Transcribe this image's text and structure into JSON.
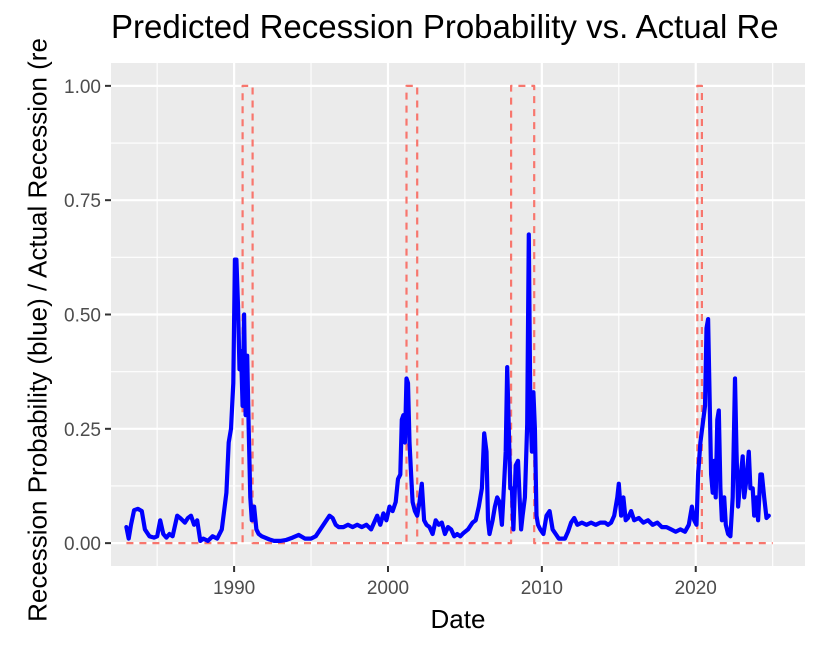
{
  "chart_data": {
    "type": "line",
    "title": "Predicted Recession Probability vs. Actual Re",
    "xlabel": "Date",
    "ylabel": "Recession Probability (blue) / Actual Recession (re",
    "xlim": [
      1982.0,
      2027.1
    ],
    "ylim": [
      -0.05,
      1.05
    ],
    "x_ticks": [
      1990,
      2000,
      2010,
      2020
    ],
    "x_tick_labels": [
      "1990",
      "2000",
      "2010",
      "2020"
    ],
    "y_ticks": [
      0,
      0.25,
      0.5,
      0.75,
      1.0
    ],
    "y_tick_labels": [
      "0.00",
      "0.25",
      "0.50",
      "0.75",
      "1.00"
    ],
    "grid": true,
    "background": "#ebebeb",
    "series": [
      {
        "color": "#0000ff",
        "style": "solid",
        "points": [
          [
            1983.0,
            0.035
          ],
          [
            1983.15,
            0.01
          ],
          [
            1983.3,
            0.04
          ],
          [
            1983.5,
            0.072
          ],
          [
            1983.75,
            0.075
          ],
          [
            1984.0,
            0.07
          ],
          [
            1984.2,
            0.03
          ],
          [
            1984.5,
            0.015
          ],
          [
            1984.8,
            0.012
          ],
          [
            1985.0,
            0.015
          ],
          [
            1985.2,
            0.05
          ],
          [
            1985.4,
            0.02
          ],
          [
            1985.6,
            0.012
          ],
          [
            1985.8,
            0.02
          ],
          [
            1986.0,
            0.015
          ],
          [
            1986.3,
            0.06
          ],
          [
            1986.5,
            0.055
          ],
          [
            1986.8,
            0.045
          ],
          [
            1987.0,
            0.055
          ],
          [
            1987.2,
            0.06
          ],
          [
            1987.4,
            0.04
          ],
          [
            1987.6,
            0.05
          ],
          [
            1987.8,
            0.005
          ],
          [
            1988.0,
            0.01
          ],
          [
            1988.3,
            0.005
          ],
          [
            1988.6,
            0.015
          ],
          [
            1988.9,
            0.01
          ],
          [
            1989.2,
            0.03
          ],
          [
            1989.5,
            0.11
          ],
          [
            1989.65,
            0.22
          ],
          [
            1989.8,
            0.25
          ],
          [
            1989.95,
            0.35
          ],
          [
            1990.05,
            0.62
          ],
          [
            1990.15,
            0.62
          ],
          [
            1990.25,
            0.52
          ],
          [
            1990.35,
            0.38
          ],
          [
            1990.45,
            0.42
          ],
          [
            1990.55,
            0.3
          ],
          [
            1990.65,
            0.5
          ],
          [
            1990.75,
            0.28
          ],
          [
            1990.85,
            0.41
          ],
          [
            1990.95,
            0.25
          ],
          [
            1991.05,
            0.1
          ],
          [
            1991.15,
            0.05
          ],
          [
            1991.3,
            0.08
          ],
          [
            1991.45,
            0.03
          ],
          [
            1991.6,
            0.02
          ],
          [
            1991.8,
            0.015
          ],
          [
            1992.0,
            0.012
          ],
          [
            1992.3,
            0.008
          ],
          [
            1992.6,
            0.005
          ],
          [
            1993.0,
            0.005
          ],
          [
            1993.4,
            0.007
          ],
          [
            1993.8,
            0.012
          ],
          [
            1994.2,
            0.018
          ],
          [
            1994.6,
            0.01
          ],
          [
            1995.0,
            0.01
          ],
          [
            1995.3,
            0.015
          ],
          [
            1995.6,
            0.03
          ],
          [
            1995.9,
            0.045
          ],
          [
            1996.2,
            0.06
          ],
          [
            1996.4,
            0.055
          ],
          [
            1996.6,
            0.04
          ],
          [
            1996.8,
            0.035
          ],
          [
            1997.1,
            0.035
          ],
          [
            1997.4,
            0.04
          ],
          [
            1997.7,
            0.035
          ],
          [
            1998.0,
            0.04
          ],
          [
            1998.3,
            0.035
          ],
          [
            1998.6,
            0.04
          ],
          [
            1998.9,
            0.03
          ],
          [
            1999.1,
            0.045
          ],
          [
            1999.3,
            0.06
          ],
          [
            1999.5,
            0.04
          ],
          [
            1999.7,
            0.065
          ],
          [
            1999.9,
            0.05
          ],
          [
            2000.1,
            0.08
          ],
          [
            2000.3,
            0.07
          ],
          [
            2000.5,
            0.09
          ],
          [
            2000.65,
            0.14
          ],
          [
            2000.8,
            0.15
          ],
          [
            2000.9,
            0.27
          ],
          [
            2001.0,
            0.28
          ],
          [
            2001.1,
            0.22
          ],
          [
            2001.2,
            0.36
          ],
          [
            2001.3,
            0.35
          ],
          [
            2001.4,
            0.22
          ],
          [
            2001.5,
            0.15
          ],
          [
            2001.6,
            0.09
          ],
          [
            2001.75,
            0.07
          ],
          [
            2001.9,
            0.06
          ],
          [
            2002.05,
            0.09
          ],
          [
            2002.2,
            0.13
          ],
          [
            2002.35,
            0.05
          ],
          [
            2002.5,
            0.04
          ],
          [
            2002.7,
            0.035
          ],
          [
            2002.9,
            0.02
          ],
          [
            2003.1,
            0.05
          ],
          [
            2003.3,
            0.04
          ],
          [
            2003.5,
            0.045
          ],
          [
            2003.7,
            0.02
          ],
          [
            2003.9,
            0.035
          ],
          [
            2004.1,
            0.03
          ],
          [
            2004.3,
            0.015
          ],
          [
            2004.5,
            0.02
          ],
          [
            2004.7,
            0.015
          ],
          [
            2004.9,
            0.022
          ],
          [
            2005.2,
            0.03
          ],
          [
            2005.5,
            0.045
          ],
          [
            2005.7,
            0.05
          ],
          [
            2005.9,
            0.08
          ],
          [
            2006.1,
            0.12
          ],
          [
            2006.25,
            0.24
          ],
          [
            2006.4,
            0.2
          ],
          [
            2006.5,
            0.05
          ],
          [
            2006.6,
            0.02
          ],
          [
            2006.8,
            0.05
          ],
          [
            2006.95,
            0.08
          ],
          [
            2007.1,
            0.1
          ],
          [
            2007.25,
            0.09
          ],
          [
            2007.4,
            0.04
          ],
          [
            2007.5,
            0.1
          ],
          [
            2007.65,
            0.2
          ],
          [
            2007.75,
            0.385
          ],
          [
            2007.85,
            0.25
          ],
          [
            2007.95,
            0.12
          ],
          [
            2008.05,
            0.12
          ],
          [
            2008.15,
            0.03
          ],
          [
            2008.3,
            0.17
          ],
          [
            2008.45,
            0.18
          ],
          [
            2008.55,
            0.1
          ],
          [
            2008.65,
            0.03
          ],
          [
            2008.75,
            0.06
          ],
          [
            2008.9,
            0.1
          ],
          [
            2009.05,
            0.26
          ],
          [
            2009.15,
            0.675
          ],
          [
            2009.25,
            0.3
          ],
          [
            2009.35,
            0.2
          ],
          [
            2009.45,
            0.33
          ],
          [
            2009.55,
            0.25
          ],
          [
            2009.65,
            0.06
          ],
          [
            2009.75,
            0.04
          ],
          [
            2009.9,
            0.03
          ],
          [
            2010.1,
            0.02
          ],
          [
            2010.3,
            0.06
          ],
          [
            2010.5,
            0.07
          ],
          [
            2010.7,
            0.03
          ],
          [
            2010.9,
            0.02
          ],
          [
            2011.1,
            0.01
          ],
          [
            2011.3,
            0.01
          ],
          [
            2011.5,
            0.01
          ],
          [
            2011.7,
            0.025
          ],
          [
            2011.9,
            0.045
          ],
          [
            2012.1,
            0.055
          ],
          [
            2012.3,
            0.04
          ],
          [
            2012.6,
            0.045
          ],
          [
            2012.9,
            0.04
          ],
          [
            2013.2,
            0.045
          ],
          [
            2013.5,
            0.04
          ],
          [
            2013.8,
            0.045
          ],
          [
            2014.1,
            0.045
          ],
          [
            2014.3,
            0.04
          ],
          [
            2014.5,
            0.045
          ],
          [
            2014.7,
            0.06
          ],
          [
            2014.9,
            0.1
          ],
          [
            2015.0,
            0.13
          ],
          [
            2015.15,
            0.06
          ],
          [
            2015.3,
            0.1
          ],
          [
            2015.45,
            0.05
          ],
          [
            2015.6,
            0.055
          ],
          [
            2015.8,
            0.07
          ],
          [
            2016.0,
            0.05
          ],
          [
            2016.3,
            0.055
          ],
          [
            2016.6,
            0.045
          ],
          [
            2016.9,
            0.05
          ],
          [
            2017.2,
            0.04
          ],
          [
            2017.5,
            0.045
          ],
          [
            2017.8,
            0.035
          ],
          [
            2018.1,
            0.035
          ],
          [
            2018.4,
            0.03
          ],
          [
            2018.7,
            0.025
          ],
          [
            2019.0,
            0.03
          ],
          [
            2019.3,
            0.025
          ],
          [
            2019.55,
            0.04
          ],
          [
            2019.75,
            0.08
          ],
          [
            2019.9,
            0.05
          ],
          [
            2020.05,
            0.04
          ],
          [
            2020.15,
            0.15
          ],
          [
            2020.3,
            0.22
          ],
          [
            2020.45,
            0.26
          ],
          [
            2020.6,
            0.3
          ],
          [
            2020.7,
            0.47
          ],
          [
            2020.8,
            0.49
          ],
          [
            2020.9,
            0.32
          ],
          [
            2021.0,
            0.15
          ],
          [
            2021.1,
            0.11
          ],
          [
            2021.2,
            0.18
          ],
          [
            2021.3,
            0.1
          ],
          [
            2021.4,
            0.27
          ],
          [
            2021.5,
            0.29
          ],
          [
            2021.6,
            0.12
          ],
          [
            2021.7,
            0.05
          ],
          [
            2021.85,
            0.1
          ],
          [
            2021.95,
            0.04
          ],
          [
            2022.1,
            0.02
          ],
          [
            2022.25,
            0.015
          ],
          [
            2022.4,
            0.1
          ],
          [
            2022.55,
            0.36
          ],
          [
            2022.65,
            0.2
          ],
          [
            2022.75,
            0.08
          ],
          [
            2022.9,
            0.14
          ],
          [
            2023.05,
            0.19
          ],
          [
            2023.15,
            0.1
          ],
          [
            2023.3,
            0.14
          ],
          [
            2023.45,
            0.2
          ],
          [
            2023.55,
            0.12
          ],
          [
            2023.7,
            0.12
          ],
          [
            2023.8,
            0.06
          ],
          [
            2023.95,
            0.1
          ],
          [
            2024.05,
            0.05
          ],
          [
            2024.2,
            0.15
          ],
          [
            2024.3,
            0.15
          ],
          [
            2024.45,
            0.1
          ],
          [
            2024.6,
            0.055
          ],
          [
            2024.75,
            0.06
          ]
        ]
      },
      {
        "color": "#f8766d",
        "style": "dashed",
        "points": [
          [
            1983.0,
            0
          ],
          [
            1990.55,
            0
          ],
          [
            1990.55,
            1
          ],
          [
            1991.2,
            1
          ],
          [
            1991.2,
            0
          ],
          [
            2001.2,
            0
          ],
          [
            2001.2,
            1
          ],
          [
            2001.9,
            1
          ],
          [
            2001.9,
            0
          ],
          [
            2008.0,
            0
          ],
          [
            2008.0,
            1
          ],
          [
            2009.5,
            1
          ],
          [
            2009.5,
            0
          ],
          [
            2020.1,
            0
          ],
          [
            2020.1,
            1
          ],
          [
            2020.4,
            1
          ],
          [
            2020.4,
            0
          ],
          [
            2025.0,
            0
          ]
        ]
      }
    ]
  }
}
